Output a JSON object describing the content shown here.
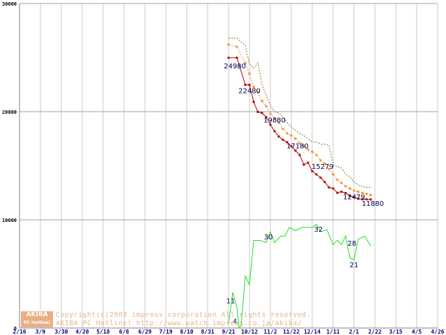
{
  "chart_data": {
    "type": "line",
    "x": [
      "2/16",
      "3/9",
      "3/30",
      "4/20",
      "5/18",
      "6/8",
      "6/29",
      "7/19",
      "8/10",
      "8/31",
      "9/21",
      "10/12",
      "11/2",
      "11/22",
      "12/14",
      "1/11",
      "2/1",
      "2/22",
      "3/15",
      "4/5",
      "4/26"
    ],
    "yticks": [
      "30000",
      "20000",
      "10000",
      "0"
    ],
    "ylim": [
      0,
      30000
    ],
    "grid": true,
    "series": [
      {
        "color": "#8b6914",
        "style": "dashed",
        "values": [
          [
            10.0,
            26800
          ],
          [
            10.4,
            26800
          ],
          [
            10.8,
            26100
          ],
          [
            11.0,
            24400
          ],
          [
            11.2,
            24000
          ],
          [
            11.4,
            24500
          ],
          [
            11.6,
            22500
          ],
          [
            11.8,
            21500
          ],
          [
            12.0,
            20600
          ],
          [
            12.2,
            20000
          ],
          [
            12.4,
            19900
          ],
          [
            12.6,
            19500
          ],
          [
            12.8,
            19000
          ],
          [
            13.0,
            18600
          ],
          [
            13.2,
            18300
          ],
          [
            13.4,
            18000
          ],
          [
            13.6,
            17800
          ],
          [
            13.8,
            17500
          ],
          [
            14.0,
            17200
          ],
          [
            14.2,
            17200
          ],
          [
            14.4,
            17000
          ],
          [
            14.6,
            17000
          ],
          [
            14.8,
            16900
          ],
          [
            15.0,
            15100
          ],
          [
            15.2,
            14900
          ],
          [
            15.4,
            14800
          ],
          [
            15.6,
            14200
          ],
          [
            15.8,
            14000
          ],
          [
            16.0,
            13500
          ],
          [
            16.2,
            13200
          ],
          [
            16.4,
            13100
          ],
          [
            16.6,
            13000
          ],
          [
            16.8,
            13000
          ]
        ]
      },
      {
        "color": "#f08c28",
        "style": "dotted-markers",
        "values": [
          [
            10.0,
            26200
          ],
          [
            10.4,
            26000
          ],
          [
            10.8,
            24500
          ],
          [
            11.0,
            23500
          ],
          [
            11.2,
            22300
          ],
          [
            11.4,
            21800
          ],
          [
            11.6,
            21000
          ],
          [
            11.8,
            20500
          ],
          [
            12.0,
            19800
          ],
          [
            12.2,
            19400
          ],
          [
            12.4,
            19000
          ],
          [
            12.6,
            18400
          ],
          [
            12.8,
            18000
          ],
          [
            13.0,
            17800
          ],
          [
            13.2,
            17500
          ],
          [
            13.4,
            17100
          ],
          [
            13.6,
            16800
          ],
          [
            13.8,
            16500
          ],
          [
            14.0,
            16300
          ],
          [
            14.2,
            16000
          ],
          [
            14.4,
            15500
          ],
          [
            14.6,
            15200
          ],
          [
            14.8,
            14700
          ],
          [
            15.0,
            14200
          ],
          [
            15.2,
            13700
          ],
          [
            15.4,
            13400
          ],
          [
            15.6,
            13100
          ],
          [
            15.8,
            12900
          ],
          [
            16.0,
            12700
          ],
          [
            16.2,
            12600
          ],
          [
            16.4,
            12500
          ],
          [
            16.6,
            12400
          ],
          [
            16.8,
            12300
          ]
        ]
      },
      {
        "color": "#b00000",
        "style": "solid-markers",
        "values": [
          [
            10.0,
            24980
          ],
          [
            10.4,
            24980
          ],
          [
            10.8,
            22480
          ],
          [
            11.0,
            22480
          ],
          [
            11.2,
            20900
          ],
          [
            11.4,
            19980
          ],
          [
            11.6,
            19880
          ],
          [
            11.8,
            19500
          ],
          [
            12.0,
            18800
          ],
          [
            12.2,
            18200
          ],
          [
            12.4,
            17700
          ],
          [
            12.6,
            17400
          ],
          [
            12.8,
            17180
          ],
          [
            13.0,
            16800
          ],
          [
            13.2,
            16400
          ],
          [
            13.4,
            16000
          ],
          [
            13.6,
            15100
          ],
          [
            13.8,
            15279
          ],
          [
            14.0,
            14500
          ],
          [
            14.2,
            14200
          ],
          [
            14.4,
            13900
          ],
          [
            14.6,
            13500
          ],
          [
            14.8,
            13000
          ],
          [
            15.0,
            12900
          ],
          [
            15.2,
            12500
          ],
          [
            15.4,
            12600
          ],
          [
            15.6,
            12479
          ],
          [
            15.8,
            12200
          ],
          [
            16.0,
            12100
          ],
          [
            16.2,
            11950
          ],
          [
            16.4,
            11900
          ],
          [
            16.6,
            11900
          ],
          [
            16.8,
            11880
          ]
        ]
      },
      {
        "color": "#22dd22",
        "style": "solid",
        "values": [
          [
            10.0,
            400
          ],
          [
            10.2,
            3300
          ],
          [
            10.4,
            1900
          ],
          [
            10.5,
            0
          ],
          [
            10.6,
            200
          ],
          [
            10.8,
            4800
          ],
          [
            11.0,
            4000
          ],
          [
            11.2,
            8100
          ],
          [
            11.5,
            8100
          ],
          [
            11.8,
            7900
          ],
          [
            12.0,
            8900
          ],
          [
            12.2,
            7900
          ],
          [
            12.5,
            8500
          ],
          [
            12.7,
            8500
          ],
          [
            12.9,
            9300
          ],
          [
            13.2,
            9000
          ],
          [
            13.5,
            9300
          ],
          [
            13.8,
            9300
          ],
          [
            14.0,
            9300
          ],
          [
            14.2,
            9600
          ],
          [
            14.4,
            8900
          ],
          [
            14.7,
            9100
          ],
          [
            15.0,
            7700
          ],
          [
            15.2,
            8100
          ],
          [
            15.4,
            7700
          ],
          [
            15.6,
            8500
          ],
          [
            15.8,
            6500
          ],
          [
            16.0,
            6300
          ],
          [
            16.2,
            8200
          ],
          [
            16.5,
            8500
          ],
          [
            16.8,
            7600
          ]
        ]
      }
    ],
    "data_labels": [
      {
        "text": "24980",
        "x": 10.3,
        "y": 24000
      },
      {
        "text": "22480",
        "x": 11.0,
        "y": 21700
      },
      {
        "text": "19880",
        "x": 12.2,
        "y": 19000
      },
      {
        "text": "17180",
        "x": 13.3,
        "y": 16600
      },
      {
        "text": "15279",
        "x": 14.5,
        "y": 14700
      },
      {
        "text": "12479",
        "x": 16.0,
        "y": 11900
      },
      {
        "text": "11880",
        "x": 16.9,
        "y": 11300
      },
      {
        "text": "11",
        "x": 10.1,
        "y": 2300
      },
      {
        "text": "4",
        "x": 10.3,
        "y": 400
      },
      {
        "text": "30",
        "x": 11.9,
        "y": 8200
      },
      {
        "text": "32",
        "x": 14.3,
        "y": 8900
      },
      {
        "text": "28",
        "x": 15.9,
        "y": 7600
      },
      {
        "text": "21",
        "x": 16.0,
        "y": 5600
      }
    ]
  },
  "watermark": {
    "logo_top": "AKIBA",
    "logo_bottom": "PC Hotline!",
    "line1": "Copyright(c)2003 impress corporation All rights reserved.",
    "line2": "AKIBA PC Hotline! http://www.watch.impress.co.jp/akiba/"
  }
}
